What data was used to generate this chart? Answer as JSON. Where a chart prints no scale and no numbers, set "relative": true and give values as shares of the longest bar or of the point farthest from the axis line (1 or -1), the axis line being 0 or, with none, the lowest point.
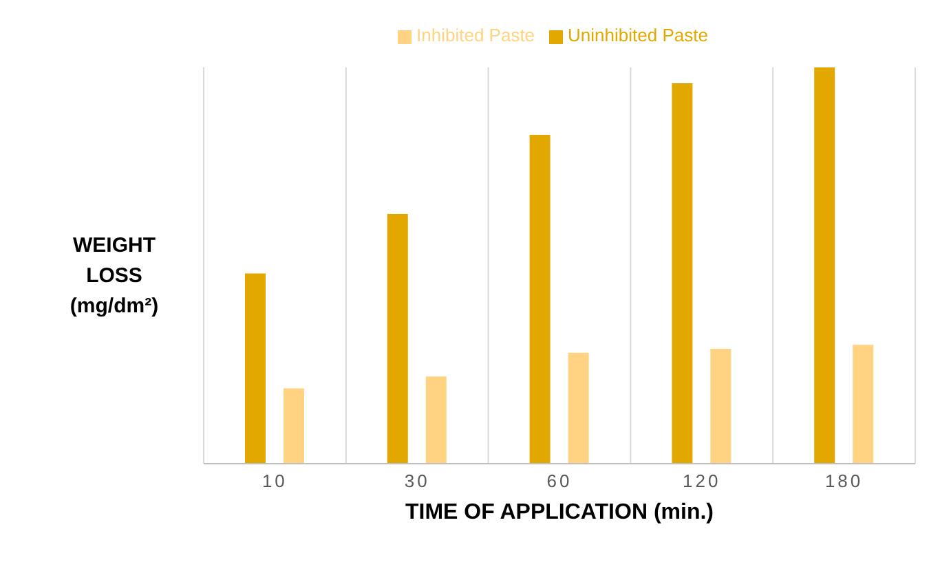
{
  "chart_data": {
    "type": "bar",
    "relative": true,
    "xlabel": "TIME OF APPLICATION (min.)",
    "ylabel": "WEIGHT LOSS (mg/dm²)",
    "categories": [
      "10",
      "30",
      "60",
      "120",
      "180"
    ],
    "series": [
      {
        "name": "Uninhibited Paste",
        "color": "#e3a800",
        "values": [
          0.48,
          0.63,
          0.83,
          0.96,
          1
        ]
      },
      {
        "name": "Inhibited Paste",
        "color": "#ffd381",
        "values": [
          0.19,
          0.22,
          0.28,
          0.29,
          0.3
        ]
      }
    ],
    "grid": "x",
    "legend": "top"
  }
}
